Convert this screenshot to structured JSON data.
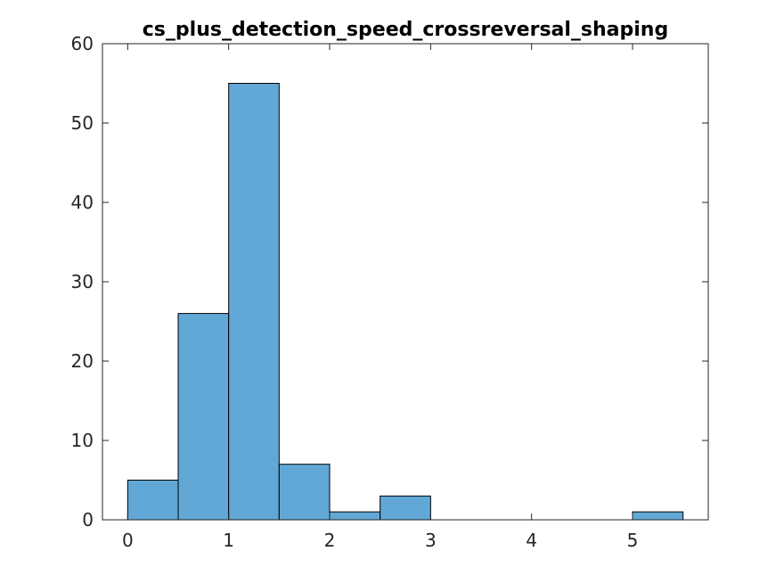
{
  "chart_data": {
    "type": "bar",
    "subtype": "histogram",
    "title": "cs_plus_detection_speed_crossreversal_shaping",
    "xlabel": "",
    "ylabel": "",
    "xlim": [
      -0.25,
      5.75
    ],
    "ylim": [
      0,
      60
    ],
    "xticks": [
      0,
      1,
      2,
      3,
      4,
      5
    ],
    "yticks": [
      0,
      10,
      20,
      30,
      40,
      50,
      60
    ],
    "bin_edges": [
      0,
      0.5,
      1,
      1.5,
      2,
      2.5,
      3,
      3.5,
      4,
      4.5,
      5,
      5.5
    ],
    "counts": [
      5,
      26,
      55,
      7,
      1,
      3,
      0,
      0,
      0,
      0,
      1
    ],
    "bar_color": "#61a8d6",
    "edge_color": "#000000",
    "grid": false,
    "box": true
  }
}
